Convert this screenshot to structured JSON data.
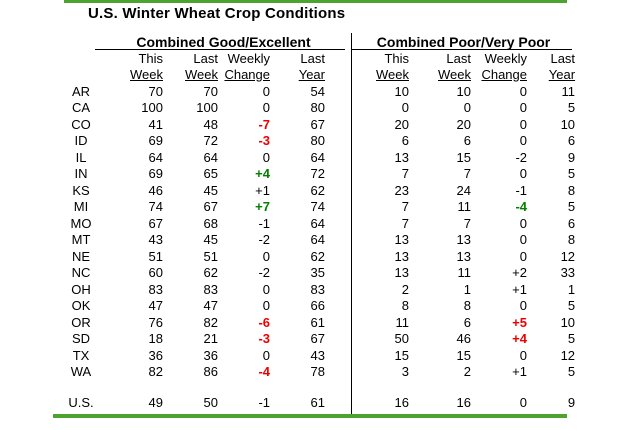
{
  "title": "U.S. Winter Wheat Crop Conditions",
  "colors": {
    "accent_line": "#4da32f",
    "negative_red": "#ee0000",
    "positive_green": "#008000",
    "divider": "#000000",
    "text": "#000000"
  },
  "chart_data": {
    "type": "table",
    "title": "U.S. Winter Wheat Crop Conditions",
    "sections": [
      "Combined Good/Excellent",
      "Combined Poor/Very Poor"
    ],
    "columns": [
      "This Week",
      "Last Week",
      "Weekly Change",
      "Last Year"
    ],
    "rows": [
      {
        "state": "AR",
        "ge": {
          "this_week": "70",
          "last_week": "70",
          "change": "0",
          "change_color": "none",
          "last_year": "54"
        },
        "pp": {
          "this_week": "10",
          "last_week": "10",
          "change": "0",
          "change_color": "none",
          "last_year": "11"
        }
      },
      {
        "state": "CA",
        "ge": {
          "this_week": "100",
          "last_week": "100",
          "change": "0",
          "change_color": "none",
          "last_year": "80"
        },
        "pp": {
          "this_week": "0",
          "last_week": "0",
          "change": "0",
          "change_color": "none",
          "last_year": "5"
        }
      },
      {
        "state": "CO",
        "ge": {
          "this_week": "41",
          "last_week": "48",
          "change": "-7",
          "change_color": "red",
          "last_year": "67"
        },
        "pp": {
          "this_week": "20",
          "last_week": "20",
          "change": "0",
          "change_color": "none",
          "last_year": "10"
        }
      },
      {
        "state": "ID",
        "ge": {
          "this_week": "69",
          "last_week": "72",
          "change": "-3",
          "change_color": "red",
          "last_year": "80"
        },
        "pp": {
          "this_week": "6",
          "last_week": "6",
          "change": "0",
          "change_color": "none",
          "last_year": "6"
        }
      },
      {
        "state": "IL",
        "ge": {
          "this_week": "64",
          "last_week": "64",
          "change": "0",
          "change_color": "none",
          "last_year": "64"
        },
        "pp": {
          "this_week": "13",
          "last_week": "15",
          "change": "-2",
          "change_color": "none",
          "last_year": "9"
        }
      },
      {
        "state": "IN",
        "ge": {
          "this_week": "69",
          "last_week": "65",
          "change": "+4",
          "change_color": "green",
          "last_year": "72"
        },
        "pp": {
          "this_week": "7",
          "last_week": "7",
          "change": "0",
          "change_color": "none",
          "last_year": "5"
        }
      },
      {
        "state": "KS",
        "ge": {
          "this_week": "46",
          "last_week": "45",
          "change": "+1",
          "change_color": "none",
          "last_year": "62"
        },
        "pp": {
          "this_week": "23",
          "last_week": "24",
          "change": "-1",
          "change_color": "none",
          "last_year": "8"
        }
      },
      {
        "state": "MI",
        "ge": {
          "this_week": "74",
          "last_week": "67",
          "change": "+7",
          "change_color": "green",
          "last_year": "74"
        },
        "pp": {
          "this_week": "7",
          "last_week": "11",
          "change": "-4",
          "change_color": "green",
          "last_year": "5"
        }
      },
      {
        "state": "MO",
        "ge": {
          "this_week": "67",
          "last_week": "68",
          "change": "-1",
          "change_color": "none",
          "last_year": "64"
        },
        "pp": {
          "this_week": "7",
          "last_week": "7",
          "change": "0",
          "change_color": "none",
          "last_year": "6"
        }
      },
      {
        "state": "MT",
        "ge": {
          "this_week": "43",
          "last_week": "45",
          "change": "-2",
          "change_color": "none",
          "last_year": "64"
        },
        "pp": {
          "this_week": "13",
          "last_week": "13",
          "change": "0",
          "change_color": "none",
          "last_year": "8"
        }
      },
      {
        "state": "NE",
        "ge": {
          "this_week": "51",
          "last_week": "51",
          "change": "0",
          "change_color": "none",
          "last_year": "62"
        },
        "pp": {
          "this_week": "13",
          "last_week": "13",
          "change": "0",
          "change_color": "none",
          "last_year": "12"
        }
      },
      {
        "state": "NC",
        "ge": {
          "this_week": "60",
          "last_week": "62",
          "change": "-2",
          "change_color": "none",
          "last_year": "35"
        },
        "pp": {
          "this_week": "13",
          "last_week": "11",
          "change": "+2",
          "change_color": "none",
          "last_year": "33"
        }
      },
      {
        "state": "OH",
        "ge": {
          "this_week": "83",
          "last_week": "83",
          "change": "0",
          "change_color": "none",
          "last_year": "83"
        },
        "pp": {
          "this_week": "2",
          "last_week": "1",
          "change": "+1",
          "change_color": "none",
          "last_year": "1"
        }
      },
      {
        "state": "OK",
        "ge": {
          "this_week": "47",
          "last_week": "47",
          "change": "0",
          "change_color": "none",
          "last_year": "66"
        },
        "pp": {
          "this_week": "8",
          "last_week": "8",
          "change": "0",
          "change_color": "none",
          "last_year": "5"
        }
      },
      {
        "state": "OR",
        "ge": {
          "this_week": "76",
          "last_week": "82",
          "change": "-6",
          "change_color": "red",
          "last_year": "61"
        },
        "pp": {
          "this_week": "11",
          "last_week": "6",
          "change": "+5",
          "change_color": "red",
          "last_year": "10"
        }
      },
      {
        "state": "SD",
        "ge": {
          "this_week": "18",
          "last_week": "21",
          "change": "-3",
          "change_color": "red",
          "last_year": "67"
        },
        "pp": {
          "this_week": "50",
          "last_week": "46",
          "change": "+4",
          "change_color": "red",
          "last_year": "5"
        }
      },
      {
        "state": "TX",
        "ge": {
          "this_week": "36",
          "last_week": "36",
          "change": "0",
          "change_color": "none",
          "last_year": "43"
        },
        "pp": {
          "this_week": "15",
          "last_week": "15",
          "change": "0",
          "change_color": "none",
          "last_year": "12"
        }
      },
      {
        "state": "WA",
        "ge": {
          "this_week": "82",
          "last_week": "86",
          "change": "-4",
          "change_color": "red",
          "last_year": "78"
        },
        "pp": {
          "this_week": "3",
          "last_week": "2",
          "change": "+1",
          "change_color": "none",
          "last_year": "5"
        }
      }
    ],
    "us_row": {
      "state": "U.S.",
      "ge": {
        "this_week": "49",
        "last_week": "50",
        "change": "-1",
        "change_color": "none",
        "last_year": "61"
      },
      "pp": {
        "this_week": "16",
        "last_week": "16",
        "change": "0",
        "change_color": "none",
        "last_year": "9"
      }
    }
  }
}
